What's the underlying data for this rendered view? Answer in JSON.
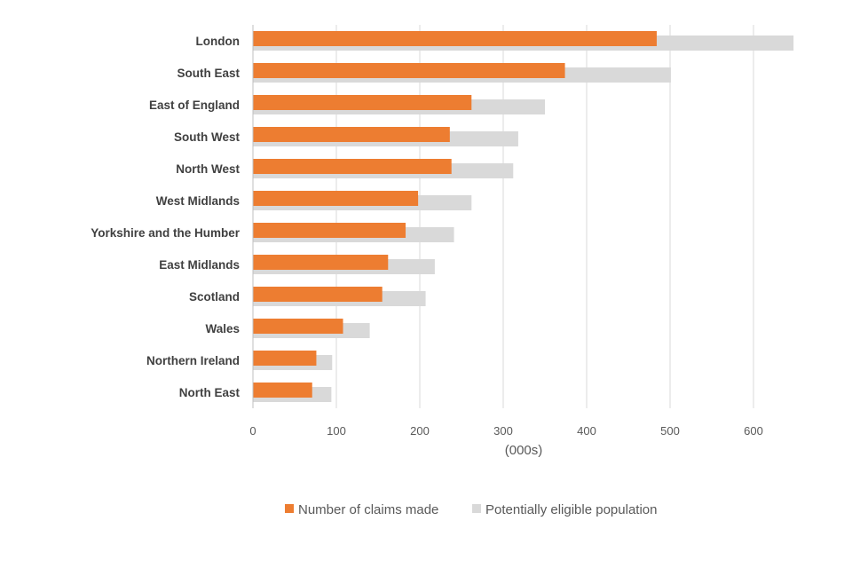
{
  "chart_data": {
    "type": "bar",
    "orientation": "horizontal",
    "title": "",
    "xlabel": "(000s)",
    "ylabel": "",
    "xlim": [
      0,
      650
    ],
    "x_ticks": [
      0,
      100,
      200,
      300,
      400,
      500,
      600
    ],
    "grid": true,
    "legend_position": "bottom",
    "categories": [
      "London",
      "South East",
      "East of England",
      "South West",
      "North West",
      "West Midlands",
      "Yorkshire and the Humber",
      "East Midlands",
      "Scotland",
      "Wales",
      "Northern Ireland",
      "North East"
    ],
    "series": [
      {
        "name": "Number of claims made",
        "color": "#ED7D31",
        "values": [
          484,
          374,
          262,
          236,
          238,
          198,
          183,
          162,
          155,
          108,
          76,
          71
        ]
      },
      {
        "name": "Potentially eligible population",
        "color": "#D9D9D9",
        "values": [
          648,
          501,
          350,
          318,
          312,
          262,
          241,
          218,
          207,
          140,
          95,
          94
        ]
      }
    ]
  }
}
